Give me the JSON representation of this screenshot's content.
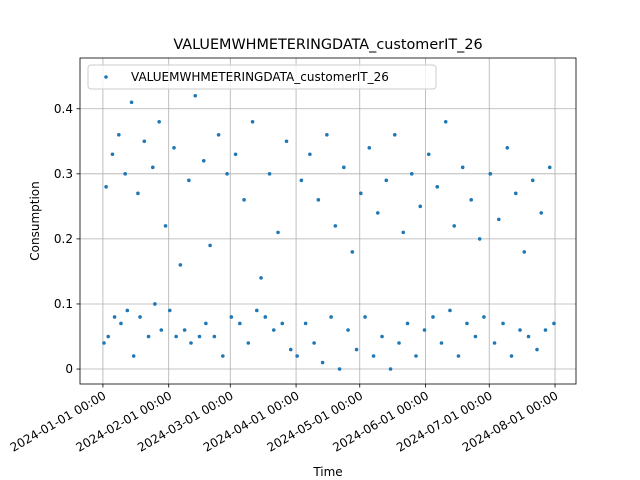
{
  "chart_data": {
    "type": "scatter",
    "title": "VALUEMWHMETERINGDATA_customerIT_26",
    "xlabel": "Time",
    "ylabel": "Consumption",
    "grid": true,
    "legend": "upper left",
    "xlim": [
      "2023-12-21 05:00",
      "2024-08-10 21:00"
    ],
    "xticks": [
      "2024-01-01 00:00",
      "2024-02-01 00:00",
      "2024-03-01 00:00",
      "2024-04-01 00:00",
      "2024-05-01 00:00",
      "2024-06-01 00:00",
      "2024-07-01 00:00",
      "2024-08-01 00:00"
    ],
    "ylim": [
      -0.023,
      0.478
    ],
    "yticks": [
      0.0,
      0.1,
      0.2,
      0.3,
      0.4
    ],
    "x": [
      "2024-01-01 12:00",
      "2024-01-02 12:00",
      "2024-01-03 12:00",
      "2024-01-05 12:00",
      "2024-01-06 12:00",
      "2024-01-08 12:00",
      "2024-01-09 12:00",
      "2024-01-11 12:00",
      "2024-01-12 12:00",
      "2024-01-14 12:00",
      "2024-01-15 12:00",
      "2024-01-17 12:00",
      "2024-01-18 12:00",
      "2024-01-20 12:00",
      "2024-01-22 12:00",
      "2024-01-24 12:00",
      "2024-01-25 12:00",
      "2024-01-27 12:00",
      "2024-01-28 12:00",
      "2024-01-30 12:00",
      "2024-02-01 12:00",
      "2024-02-03 12:00",
      "2024-02-04 12:00",
      "2024-02-06 12:00",
      "2024-02-08 12:00",
      "2024-02-10 12:00",
      "2024-02-11 12:00",
      "2024-02-13 12:00",
      "2024-02-15 12:00",
      "2024-02-17 12:00",
      "2024-02-18 12:00",
      "2024-02-20 12:00",
      "2024-02-22 12:00",
      "2024-02-24 12:00",
      "2024-02-26 12:00",
      "2024-02-28 12:00",
      "2024-03-01 12:00",
      "2024-03-03 12:00",
      "2024-03-05 12:00",
      "2024-03-07 12:00",
      "2024-03-09 12:00",
      "2024-03-11 12:00",
      "2024-03-13 12:00",
      "2024-03-15 12:00",
      "2024-03-17 12:00",
      "2024-03-19 12:00",
      "2024-03-21 12:00",
      "2024-03-23 12:00",
      "2024-03-25 12:00",
      "2024-03-27 12:00",
      "2024-03-29 12:00",
      "2024-04-01 12:00",
      "2024-04-03 12:00",
      "2024-04-05 12:00",
      "2024-04-07 12:00",
      "2024-04-09 12:00",
      "2024-04-11 12:00",
      "2024-04-13 12:00",
      "2024-04-15 12:00",
      "2024-04-17 12:00",
      "2024-04-19 12:00",
      "2024-04-21 12:00",
      "2024-04-23 12:00",
      "2024-04-25 12:00",
      "2024-04-27 12:00",
      "2024-04-29 12:00",
      "2024-05-01 12:00",
      "2024-05-03 12:00",
      "2024-05-05 12:00",
      "2024-05-07 12:00",
      "2024-05-09 12:00",
      "2024-05-11 12:00",
      "2024-05-13 12:00",
      "2024-05-15 12:00",
      "2024-05-17 12:00",
      "2024-05-19 12:00",
      "2024-05-21 12:00",
      "2024-05-23 12:00",
      "2024-05-25 12:00",
      "2024-05-27 12:00",
      "2024-05-29 12:00",
      "2024-05-31 12:00",
      "2024-06-02 12:00",
      "2024-06-04 12:00",
      "2024-06-06 12:00",
      "2024-06-08 12:00",
      "2024-06-10 12:00",
      "2024-06-12 12:00",
      "2024-06-14 12:00",
      "2024-06-16 12:00",
      "2024-06-18 12:00",
      "2024-06-20 12:00",
      "2024-06-22 12:00",
      "2024-06-24 12:00",
      "2024-06-26 12:00",
      "2024-06-28 12:00",
      "2024-07-01 12:00",
      "2024-07-03 12:00",
      "2024-07-05 12:00",
      "2024-07-07 12:00",
      "2024-07-09 12:00",
      "2024-07-11 12:00",
      "2024-07-13 12:00",
      "2024-07-15 12:00",
      "2024-07-17 12:00",
      "2024-07-19 12:00",
      "2024-07-21 12:00",
      "2024-07-23 12:00",
      "2024-07-25 12:00",
      "2024-07-27 12:00",
      "2024-07-29 12:00",
      "2024-07-31 12:00"
    ],
    "series": [
      {
        "name": "VALUEMWHMETERINGDATA_customerIT_26",
        "color": "#1f77b4",
        "values": [
          0.04,
          0.28,
          0.05,
          0.33,
          0.08,
          0.36,
          0.07,
          0.3,
          0.09,
          0.41,
          0.02,
          0.27,
          0.08,
          0.35,
          0.05,
          0.31,
          0.1,
          0.38,
          0.06,
          0.22,
          0.09,
          0.34,
          0.05,
          0.16,
          0.06,
          0.29,
          0.04,
          0.42,
          0.05,
          0.32,
          0.07,
          0.19,
          0.05,
          0.36,
          0.02,
          0.3,
          0.08,
          0.33,
          0.07,
          0.26,
          0.04,
          0.38,
          0.09,
          0.14,
          0.08,
          0.3,
          0.06,
          0.21,
          0.07,
          0.35,
          0.03,
          0.02,
          0.29,
          0.07,
          0.33,
          0.04,
          0.26,
          0.01,
          0.36,
          0.08,
          0.22,
          0.0,
          0.31,
          0.06,
          0.18,
          0.03,
          0.27,
          0.08,
          0.34,
          0.02,
          0.24,
          0.05,
          0.29,
          0.0,
          0.36,
          0.04,
          0.21,
          0.07,
          0.3,
          0.02,
          0.25,
          0.06,
          0.33,
          0.08,
          0.28,
          0.04,
          0.38,
          0.09,
          0.22,
          0.02,
          0.31,
          0.07,
          0.26,
          0.05,
          0.2,
          0.08,
          0.3,
          0.04,
          0.23,
          0.07,
          0.34,
          0.02,
          0.27,
          0.06,
          0.18,
          0.05,
          0.29,
          0.03,
          0.24,
          0.06,
          0.31,
          0.07
        ]
      }
    ]
  }
}
